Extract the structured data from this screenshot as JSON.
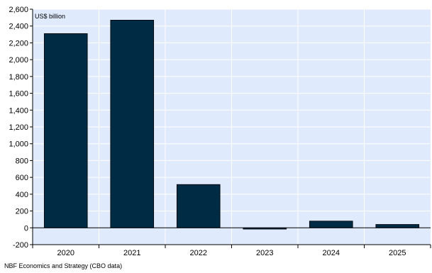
{
  "chart_data": {
    "type": "bar",
    "unit_label": "US$ billion",
    "categories": [
      "2020",
      "2021",
      "2022",
      "2023",
      "2024",
      "2025"
    ],
    "values": [
      2310,
      2470,
      515,
      -15,
      80,
      40
    ],
    "ylim": [
      -200,
      2600
    ],
    "yticks": [
      -200,
      0,
      200,
      400,
      600,
      800,
      1000,
      1200,
      1400,
      1600,
      1800,
      2000,
      2200,
      2400,
      2600
    ],
    "ytick_labels": [
      "-200",
      "0",
      "200",
      "400",
      "600",
      "800",
      "1,000",
      "1,200",
      "1,400",
      "1,600",
      "1,800",
      "2,000",
      "2,200",
      "2,400",
      "2,600"
    ],
    "grid": true,
    "bar_color": "#002b45",
    "plot_background": "#dfeafd"
  },
  "source": "NBF Economics and Strategy (CBO data)"
}
